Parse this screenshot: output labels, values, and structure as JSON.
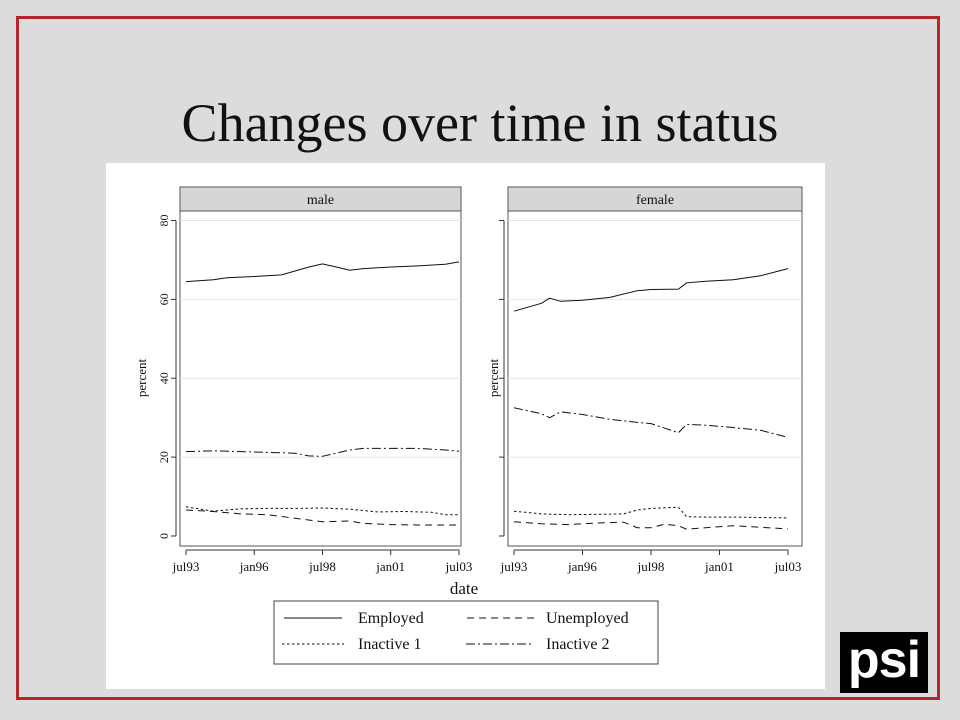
{
  "slide": {
    "title": "Changes over time in status",
    "logo_text": "psi",
    "frame_color": "#b3262d"
  },
  "chart_data": {
    "type": "line",
    "xlabel": "date",
    "ylabel": "percent",
    "ylim": [
      0,
      80
    ],
    "yticks": [
      0,
      20,
      40,
      60,
      80
    ],
    "xlim": [
      1993.5,
      2003.5
    ],
    "xticks": [
      {
        "label": "jul93",
        "x": 1993.5
      },
      {
        "label": "jan96",
        "x": 1996.0
      },
      {
        "label": "jul98",
        "x": 1998.5
      },
      {
        "label": "jan01",
        "x": 2001.0
      },
      {
        "label": "jul03",
        "x": 2003.5
      }
    ],
    "grid": true,
    "legend_position": "bottom",
    "legend": [
      {
        "key": "employed",
        "label": "Employed",
        "dash": "solid"
      },
      {
        "key": "unemployed",
        "label": "Unemployed",
        "dash": "dashed"
      },
      {
        "key": "inactive1",
        "label": "Inactive 1",
        "dash": "dotted"
      },
      {
        "key": "inactive2",
        "label": "Inactive 2",
        "dash": "dashdot"
      }
    ],
    "panels": [
      {
        "title": "male",
        "series": [
          {
            "key": "employed",
            "name": "Employed",
            "points": [
              [
                1993.5,
                64.5
              ],
              [
                1994.5,
                65.0
              ],
              [
                1995.0,
                65.5
              ],
              [
                1996.0,
                65.8
              ],
              [
                1997.0,
                66.2
              ],
              [
                1998.0,
                68.2
              ],
              [
                1998.5,
                69.0
              ],
              [
                1999.0,
                68.2
              ],
              [
                1999.5,
                67.4
              ],
              [
                2000.0,
                67.8
              ],
              [
                2001.0,
                68.2
              ],
              [
                2002.0,
                68.5
              ],
              [
                2003.0,
                68.9
              ],
              [
                2003.5,
                69.5
              ]
            ]
          },
          {
            "key": "unemployed",
            "name": "Unemployed",
            "points": [
              [
                1993.5,
                6.6
              ],
              [
                1994.5,
                6.2
              ],
              [
                1995.5,
                5.6
              ],
              [
                1996.5,
                5.4
              ],
              [
                1997.5,
                4.5
              ],
              [
                1998.5,
                3.6
              ],
              [
                1999.5,
                3.8
              ],
              [
                2000.0,
                3.2
              ],
              [
                2001.0,
                2.9
              ],
              [
                2002.0,
                2.8
              ],
              [
                2003.5,
                2.8
              ]
            ]
          },
          {
            "key": "inactive1",
            "name": "Inactive 1",
            "points": [
              [
                1993.5,
                7.4
              ],
              [
                1994.5,
                6.3
              ],
              [
                1995.5,
                6.9
              ],
              [
                1996.5,
                7.0
              ],
              [
                1997.5,
                7.0
              ],
              [
                1998.5,
                7.1
              ],
              [
                1999.5,
                6.8
              ],
              [
                2000.5,
                6.1
              ],
              [
                2001.5,
                6.2
              ],
              [
                2002.5,
                6.0
              ],
              [
                2003.0,
                5.4
              ],
              [
                2003.5,
                5.4
              ]
            ]
          },
          {
            "key": "inactive2",
            "name": "Inactive 2",
            "points": [
              [
                1993.5,
                21.4
              ],
              [
                1994.5,
                21.6
              ],
              [
                1995.5,
                21.4
              ],
              [
                1996.5,
                21.2
              ],
              [
                1997.5,
                21.0
              ],
              [
                1998.0,
                20.3
              ],
              [
                1998.5,
                20.2
              ],
              [
                1999.5,
                21.8
              ],
              [
                2000.0,
                22.2
              ],
              [
                2001.0,
                22.2
              ],
              [
                2002.0,
                22.2
              ],
              [
                2003.0,
                21.8
              ],
              [
                2003.5,
                21.5
              ]
            ]
          }
        ]
      },
      {
        "title": "female",
        "series": [
          {
            "key": "employed",
            "name": "Employed",
            "points": [
              [
                1993.5,
                57.0
              ],
              [
                1994.5,
                59.0
              ],
              [
                1994.8,
                60.3
              ],
              [
                1995.2,
                59.5
              ],
              [
                1996.0,
                59.8
              ],
              [
                1997.0,
                60.5
              ],
              [
                1998.0,
                62.2
              ],
              [
                1998.5,
                62.5
              ],
              [
                1999.5,
                62.6
              ],
              [
                1999.8,
                64.2
              ],
              [
                2000.5,
                64.6
              ],
              [
                2001.5,
                65.0
              ],
              [
                2002.5,
                66.0
              ],
              [
                2003.5,
                67.8
              ]
            ]
          },
          {
            "key": "unemployed",
            "name": "Unemployed",
            "points": [
              [
                1993.5,
                3.6
              ],
              [
                1994.5,
                3.1
              ],
              [
                1995.5,
                2.9
              ],
              [
                1996.5,
                3.3
              ],
              [
                1997.5,
                3.5
              ],
              [
                1998.0,
                2.1
              ],
              [
                1998.5,
                2.1
              ],
              [
                1999.0,
                3.0
              ],
              [
                1999.5,
                2.6
              ],
              [
                1999.8,
                1.7
              ],
              [
                2000.5,
                2.1
              ],
              [
                2001.5,
                2.6
              ],
              [
                2002.5,
                2.2
              ],
              [
                2003.5,
                1.8
              ]
            ]
          },
          {
            "key": "inactive1",
            "name": "Inactive 1",
            "points": [
              [
                1993.5,
                6.3
              ],
              [
                1994.5,
                5.6
              ],
              [
                1995.5,
                5.4
              ],
              [
                1996.5,
                5.5
              ],
              [
                1997.5,
                5.6
              ],
              [
                1998.0,
                6.6
              ],
              [
                1998.5,
                7.0
              ],
              [
                1999.5,
                7.3
              ],
              [
                1999.8,
                4.9
              ],
              [
                2000.5,
                4.8
              ],
              [
                2001.5,
                4.8
              ],
              [
                2002.5,
                4.7
              ],
              [
                2003.5,
                4.6
              ]
            ]
          },
          {
            "key": "inactive2",
            "name": "Inactive 2",
            "points": [
              [
                1993.5,
                32.5
              ],
              [
                1994.5,
                31.0
              ],
              [
                1994.8,
                30.0
              ],
              [
                1995.2,
                31.5
              ],
              [
                1996.0,
                30.8
              ],
              [
                1997.0,
                29.6
              ],
              [
                1998.0,
                28.8
              ],
              [
                1998.5,
                28.5
              ],
              [
                1999.5,
                26.2
              ],
              [
                1999.8,
                28.3
              ],
              [
                2000.5,
                28.1
              ],
              [
                2001.5,
                27.5
              ],
              [
                2002.5,
                26.8
              ],
              [
                2003.5,
                25.0
              ]
            ]
          }
        ]
      }
    ]
  }
}
